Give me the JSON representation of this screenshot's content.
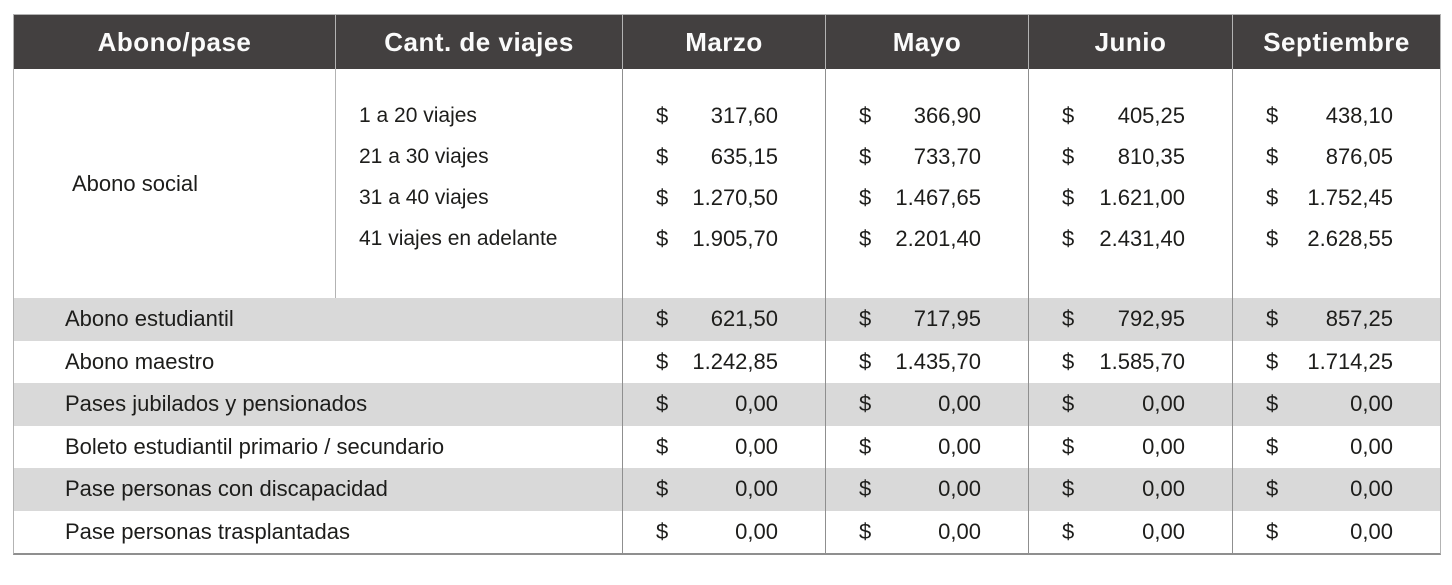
{
  "table": {
    "currency_symbol": "$",
    "header": {
      "columns": [
        "Abono/pase",
        "Cant. de viajes",
        "Marzo",
        "Mayo",
        "Junio",
        "Septiembre"
      ]
    },
    "abono_social": {
      "label": "Abono social",
      "tiers": [
        "1 a 20 viajes",
        "21 a 30 viajes",
        "31 a 40 viajes",
        "41 viajes en adelante"
      ],
      "prices": {
        "marzo": [
          "317,60",
          "635,15",
          "1.270,50",
          "1.905,70"
        ],
        "mayo": [
          "366,90",
          "733,70",
          "1.467,65",
          "2.201,40"
        ],
        "junio": [
          "405,25",
          "810,35",
          "1.621,00",
          "2.431,40"
        ],
        "septiembre": [
          "438,10",
          "876,05",
          "1.752,45",
          "2.628,55"
        ]
      }
    },
    "rows": [
      {
        "label": "Abono estudiantil",
        "marzo": "621,50",
        "mayo": "717,95",
        "junio": "792,95",
        "septiembre": "857,25"
      },
      {
        "label": "Abono maestro",
        "marzo": "1.242,85",
        "mayo": "1.435,70",
        "junio": "1.585,70",
        "septiembre": "1.714,25"
      },
      {
        "label": "Pases jubilados y pensionados",
        "marzo": "0,00",
        "mayo": "0,00",
        "junio": "0,00",
        "septiembre": "0,00"
      },
      {
        "label": "Boleto estudiantil primario / secundario",
        "marzo": "0,00",
        "mayo": "0,00",
        "junio": "0,00",
        "septiembre": "0,00"
      },
      {
        "label": "Pase personas con discapacidad",
        "marzo": "0,00",
        "mayo": "0,00",
        "junio": "0,00",
        "septiembre": "0,00"
      },
      {
        "label": "Pase personas trasplantadas",
        "marzo": "0,00",
        "mayo": "0,00",
        "junio": "0,00",
        "septiembre": "0,00"
      }
    ],
    "colors": {
      "header_bg": "#434040",
      "header_text": "#fbfbfb",
      "zebra_gray": "#d9d9d9",
      "row_white": "#ffffff",
      "grid_line": "#8f8f8f",
      "text": "#1d1d1b"
    }
  },
  "chart_data": {
    "type": "table",
    "columns": [
      "Abono/pase",
      "Cant. de viajes",
      "Marzo",
      "Mayo",
      "Junio",
      "Septiembre"
    ],
    "rows": [
      [
        "Abono social",
        "1 a 20 viajes",
        "317,60",
        "366,90",
        "405,25",
        "438,10"
      ],
      [
        "Abono social",
        "21 a 30 viajes",
        "635,15",
        "733,70",
        "810,35",
        "876,05"
      ],
      [
        "Abono social",
        "31 a 40 viajes",
        "1.270,50",
        "1.467,65",
        "1.621,00",
        "1.752,45"
      ],
      [
        "Abono social",
        "41 viajes en adelante",
        "1.905,70",
        "2.201,40",
        "2.431,40",
        "2.628,55"
      ],
      [
        "Abono estudiantil",
        "",
        "621,50",
        "717,95",
        "792,95",
        "857,25"
      ],
      [
        "Abono maestro",
        "",
        "1.242,85",
        "1.435,70",
        "1.585,70",
        "1.714,25"
      ],
      [
        "Pases jubilados y pensionados",
        "",
        "0,00",
        "0,00",
        "0,00",
        "0,00"
      ],
      [
        "Boleto estudiantil primario / secundario",
        "",
        "0,00",
        "0,00",
        "0,00",
        "0,00"
      ],
      [
        "Pase personas con discapacidad",
        "",
        "0,00",
        "0,00",
        "0,00",
        "0,00"
      ],
      [
        "Pase personas trasplantadas",
        "",
        "0,00",
        "0,00",
        "0,00",
        "0,00"
      ]
    ]
  }
}
